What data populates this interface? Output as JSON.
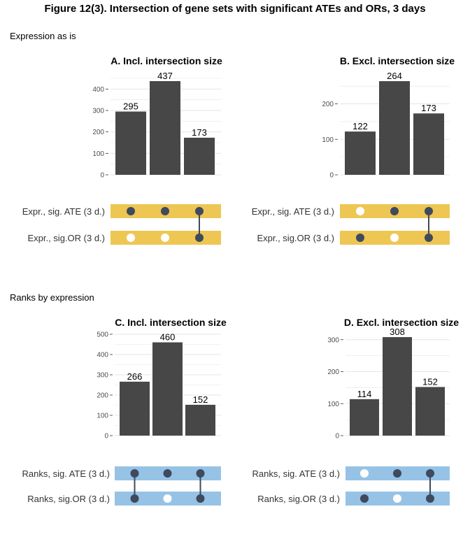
{
  "figure": {
    "title": "Figure 12(3). Intersection of gene sets with significant ATEs and ORs, 3 days"
  },
  "sections": [
    {
      "label": "Expression as is",
      "matrix_color": "#EEC653",
      "set_labels": [
        "Expr., sig. ATE (3 d.)",
        "Expr., sig.OR (3 d.)"
      ]
    },
    {
      "label": "Ranks by expression",
      "matrix_color": "#96C3E5",
      "set_labels": [
        "Ranks, sig. ATE (3 d.)",
        "Ranks, sig.OR (3 d.)"
      ]
    }
  ],
  "colors": {
    "bar": "#474747",
    "dot_filled": "#3F4A5E",
    "dot_empty": "#FFFFFF",
    "grid": "#E5E5E5"
  },
  "chart_data": [
    {
      "type": "bar",
      "title": "A. Incl. intersection size",
      "values": [
        295,
        437,
        173
      ],
      "data_labels": [
        "295",
        "437",
        "173"
      ],
      "ylim": [
        0,
        450
      ],
      "yticks": [
        0,
        100,
        200,
        300,
        400
      ],
      "ytick_labels": [
        "0",
        "100",
        "200",
        "300",
        "400"
      ],
      "membership": [
        [
          true,
          false
        ],
        [
          true,
          false
        ],
        [
          true,
          true
        ]
      ],
      "membership_note_unused": ""
    },
    {
      "type": "bar",
      "title": "B. Excl. intersection size",
      "values": [
        122,
        264,
        173
      ],
      "data_labels": [
        "122",
        "264",
        "173"
      ],
      "ylim": [
        0,
        272
      ],
      "yticks": [
        0,
        100,
        200
      ],
      "ytick_labels": [
        "0",
        "100",
        "200"
      ],
      "membership": [
        [
          false,
          true
        ],
        [
          true,
          false
        ],
        [
          true,
          true
        ]
      ]
    },
    {
      "type": "bar",
      "title": "C. Incl. intersection size",
      "values": [
        266,
        460,
        152
      ],
      "data_labels": [
        "266",
        "460",
        "152"
      ],
      "ylim": [
        0,
        500
      ],
      "yticks": [
        0,
        100,
        200,
        300,
        400,
        500
      ],
      "ytick_labels": [
        "0",
        "100",
        "200",
        "300",
        "400",
        "500"
      ],
      "membership": [
        [
          true,
          true
        ],
        [
          true,
          false
        ],
        [
          true,
          true
        ]
      ]
    },
    {
      "type": "bar",
      "title": "D. Excl. intersection size",
      "values": [
        114,
        308,
        152
      ],
      "data_labels": [
        "114",
        "308",
        "152"
      ],
      "ylim": [
        0,
        317
      ],
      "yticks": [
        0,
        100,
        200,
        300
      ],
      "ytick_labels": [
        "0",
        "100",
        "200",
        "300"
      ],
      "membership": [
        [
          false,
          true
        ],
        [
          true,
          false
        ],
        [
          true,
          true
        ]
      ]
    }
  ]
}
